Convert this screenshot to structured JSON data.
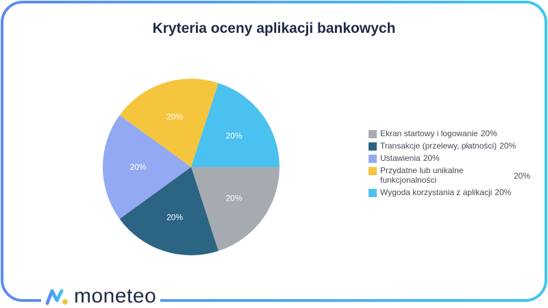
{
  "card": {
    "title": "Kryteria oceny aplikacji bankowych"
  },
  "brand": {
    "name": "moneteo",
    "logo_icon": "moneteo-logo-icon"
  },
  "colors": {
    "frame_gradient_start": "#5b8af0",
    "frame_gradient_end": "#3fc6f0",
    "title": "#1f2a44"
  },
  "chart_data": {
    "type": "pie",
    "title": "Kryteria oceny aplikacji bankowych",
    "legend_position": "right",
    "slices": [
      {
        "label": "Ekran startowy i logowanie",
        "value": 20,
        "value_label": "20%",
        "color": "#a6abb2"
      },
      {
        "label": "Transakcje (przelewy, płatności)",
        "value": 20,
        "value_label": "20%",
        "color": "#2b6583"
      },
      {
        "label": "Ustawienia",
        "value": 20,
        "value_label": "20%",
        "color": "#93a9f3"
      },
      {
        "label": "Przydatne lub unikalne funkcjonalności",
        "value": 20,
        "value_label": "20%",
        "color": "#f5c53e"
      },
      {
        "label": "Wygoda korzystania z aplikacji",
        "value": 20,
        "value_label": "20%",
        "color": "#4ac1ee"
      }
    ]
  }
}
